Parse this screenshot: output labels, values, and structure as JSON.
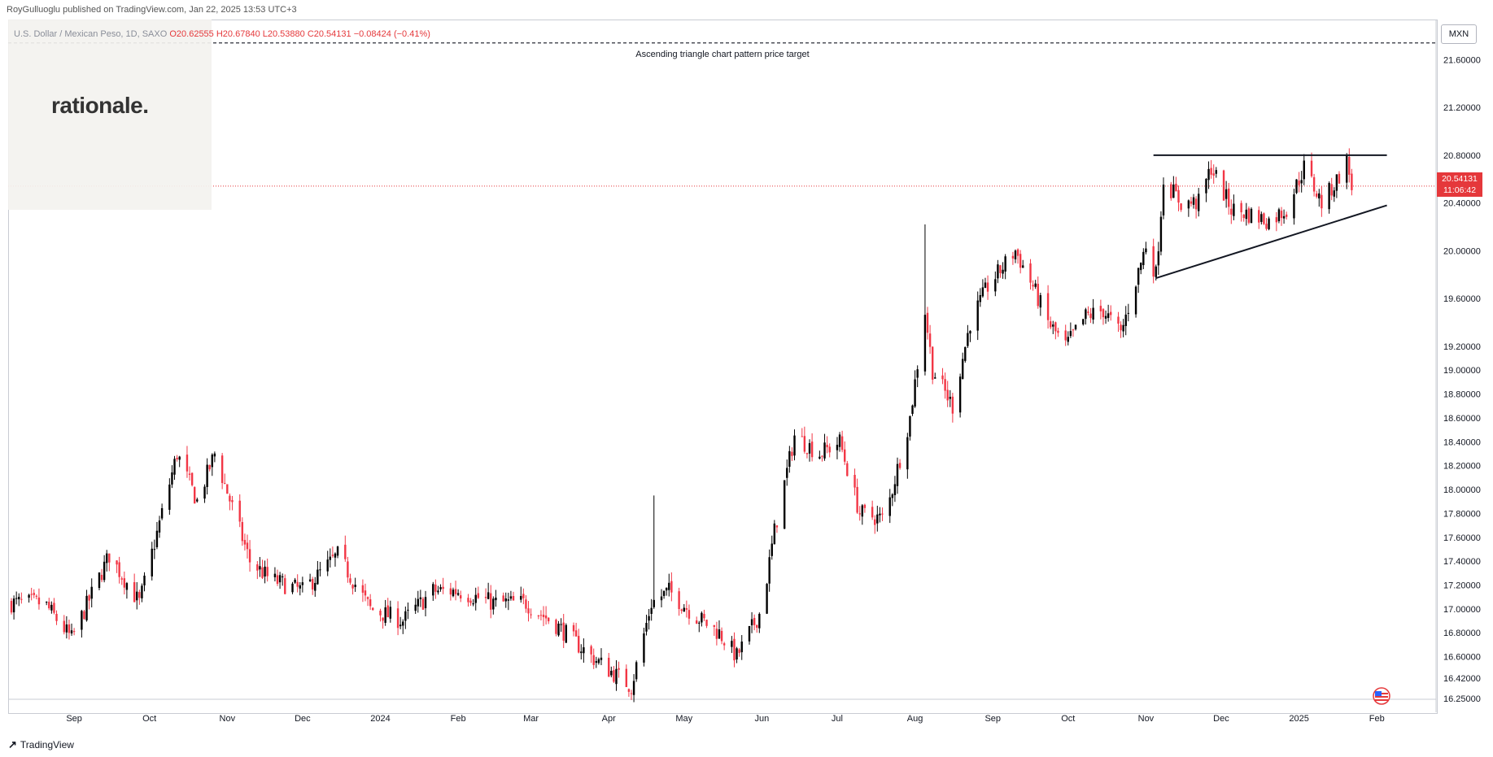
{
  "header": {
    "publish_info": "RoyGulluoglu published on TradingView.com, Jan 22, 2025 13:53 UTC+3"
  },
  "symbol_bar": {
    "symbol": "U.S. Dollar / Mexican Peso, 1D, SAXO",
    "open": "O20.62555",
    "high": "H20.67840",
    "low": "L20.53880",
    "close": "C20.54131",
    "change": "−0.08424 (−0.41%)"
  },
  "watermark": {
    "logo_text": "rationale."
  },
  "currency_button": "MXN",
  "last_price": {
    "price": "20.54131",
    "countdown": "11:06:42"
  },
  "annotation": "Ascending triangle chart pattern price target",
  "footer": {
    "brand": "TradingView"
  },
  "colors": {
    "up": "#000000",
    "down": "#f23645",
    "price_line": "#e5383b",
    "accent": "#2962ff"
  },
  "chart_data": {
    "type": "candlestick",
    "title": "U.S. Dollar / Mexican Peso, 1D, SAXO",
    "ylim": [
      16.25,
      21.8
    ],
    "y_ticks": [
      21.6,
      21.2,
      20.8,
      20.4,
      20.0,
      19.6,
      19.2,
      19.0,
      18.8,
      18.6,
      18.4,
      18.2,
      18.0,
      17.8,
      17.6,
      17.4,
      17.2,
      17.0,
      16.8,
      16.6,
      16.42,
      16.25
    ],
    "y_tick_labels": [
      "21.60000",
      "21.20000",
      "20.80000",
      "20.40000",
      "20.00000",
      "19.60000",
      "19.20000",
      "19.00000",
      "18.80000",
      "18.60000",
      "18.40000",
      "18.20000",
      "18.00000",
      "17.80000",
      "17.60000",
      "17.40000",
      "17.20000",
      "17.00000",
      "16.80000",
      "16.60000",
      "16.42000",
      "16.25000"
    ],
    "x_labels": [
      "Sep",
      "Oct",
      "Nov",
      "Dec",
      "2024",
      "Feb",
      "Mar",
      "Apr",
      "May",
      "Jun",
      "Jul",
      "Aug",
      "Sep",
      "Oct",
      "Nov",
      "Dec",
      "2025",
      "Feb"
    ],
    "x_label_dates": [
      "2023-09-01",
      "2023-10-01",
      "2023-11-01",
      "2023-12-01",
      "2024-01-01",
      "2024-02-01",
      "2024-03-01",
      "2024-04-01",
      "2024-05-01",
      "2024-06-01",
      "2024-07-01",
      "2024-08-01",
      "2024-09-01",
      "2024-10-01",
      "2024-11-01",
      "2024-12-01",
      "2025-01-01",
      "2025-02-01"
    ],
    "date_range": [
      "2023-08-07",
      "2025-02-10"
    ],
    "close_path": [
      [
        "2023-08-07",
        17.05
      ],
      [
        "2023-08-20",
        17.05
      ],
      [
        "2023-08-31",
        16.75
      ],
      [
        "2023-09-15",
        17.45
      ],
      [
        "2023-09-27",
        17.05
      ],
      [
        "2023-10-12",
        18.3
      ],
      [
        "2023-10-20",
        17.9
      ],
      [
        "2023-10-27",
        18.3
      ],
      [
        "2023-11-10",
        17.4
      ],
      [
        "2023-11-18",
        17.25
      ],
      [
        "2023-12-01",
        17.15
      ],
      [
        "2023-12-15",
        17.45
      ],
      [
        "2023-12-28",
        17.0
      ],
      [
        "2024-01-10",
        16.9
      ],
      [
        "2024-01-22",
        17.15
      ],
      [
        "2024-02-01",
        17.15
      ],
      [
        "2024-02-15",
        17.05
      ],
      [
        "2024-02-28",
        17.05
      ],
      [
        "2024-03-12",
        16.85
      ],
      [
        "2024-03-25",
        16.6
      ],
      [
        "2024-04-10",
        16.35
      ],
      [
        "2024-04-18",
        17.05
      ],
      [
        "2024-04-25",
        17.15
      ],
      [
        "2024-05-05",
        16.95
      ],
      [
        "2024-05-15",
        16.8
      ],
      [
        "2024-05-22",
        16.6
      ],
      [
        "2024-06-01",
        17.0
      ],
      [
        "2024-06-06",
        17.65
      ],
      [
        "2024-06-14",
        18.45
      ],
      [
        "2024-06-24",
        18.3
      ],
      [
        "2024-07-02",
        18.4
      ],
      [
        "2024-07-10",
        17.8
      ],
      [
        "2024-07-20",
        17.75
      ],
      [
        "2024-07-30",
        18.6
      ],
      [
        "2024-08-05",
        19.5
      ],
      [
        "2024-08-08",
        19.0
      ],
      [
        "2024-08-16",
        18.7
      ],
      [
        "2024-08-23",
        19.4
      ],
      [
        "2024-08-30",
        19.7
      ],
      [
        "2024-09-10",
        20.0
      ],
      [
        "2024-09-17",
        19.7
      ],
      [
        "2024-09-23",
        19.4
      ],
      [
        "2024-09-30",
        19.2
      ],
      [
        "2024-10-08",
        19.45
      ],
      [
        "2024-10-15",
        19.5
      ],
      [
        "2024-10-22",
        19.3
      ],
      [
        "2024-11-01",
        20.05
      ],
      [
        "2024-11-05",
        19.8
      ],
      [
        "2024-11-08",
        20.6
      ],
      [
        "2024-11-15",
        20.4
      ],
      [
        "2024-11-22",
        20.4
      ],
      [
        "2024-11-27",
        20.7
      ],
      [
        "2024-12-05",
        20.35
      ],
      [
        "2024-12-13",
        20.3
      ],
      [
        "2024-12-20",
        20.25
      ],
      [
        "2024-12-27",
        20.35
      ],
      [
        "2025-01-03",
        20.7
      ],
      [
        "2025-01-10",
        20.4
      ],
      [
        "2025-01-15",
        20.55
      ],
      [
        "2025-01-20",
        20.75
      ],
      [
        "2025-01-22",
        20.54
      ]
    ],
    "trendlines": [
      {
        "name": "resistance",
        "from": [
          "2024-11-04",
          20.8
        ],
        "to": [
          "2025-02-05",
          20.8
        ]
      },
      {
        "name": "support",
        "from": [
          "2024-11-05",
          19.77
        ],
        "to": [
          "2025-02-05",
          20.38
        ]
      }
    ],
    "horizontal_levels": [
      {
        "name": "price target",
        "value": 21.74,
        "style": "dashed",
        "label": "Ascending triangle chart pattern price target"
      },
      {
        "name": "last price",
        "value": 20.54131,
        "style": "dotted"
      }
    ]
  }
}
